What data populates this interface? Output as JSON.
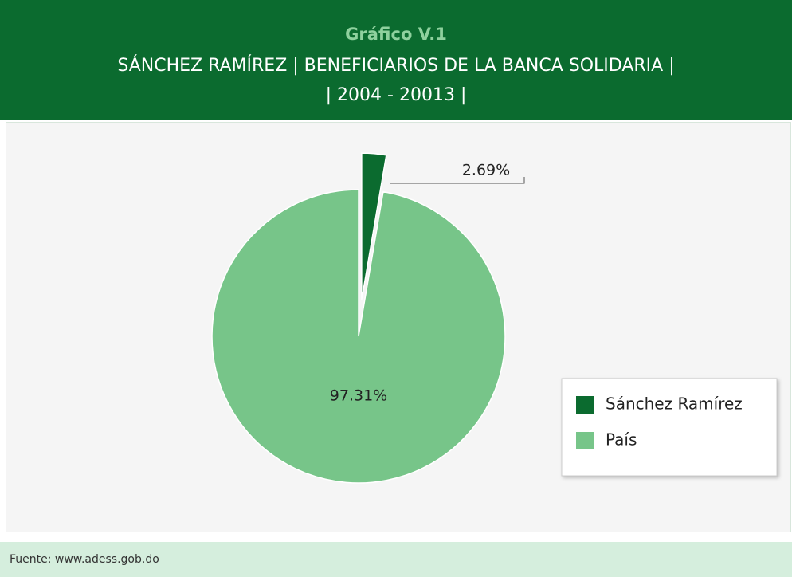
{
  "chart_data": {
    "type": "pie",
    "title": "Gráfico V.1",
    "subtitle": [
      "SÁNCHEZ RAMÍREZ | BENEFICIARIOS DE LA BANCA SOLIDARIA |",
      "| 2004 - 20013 |"
    ],
    "categories": [
      "Sánchez Ramírez",
      "País"
    ],
    "values": [
      2.69,
      97.31
    ],
    "value_labels": [
      "2.69%",
      "97.31%"
    ],
    "colors": [
      "#0b6b2f",
      "#77c589"
    ],
    "legend": "right",
    "source": "Fuente: www.adess.gob.do"
  }
}
